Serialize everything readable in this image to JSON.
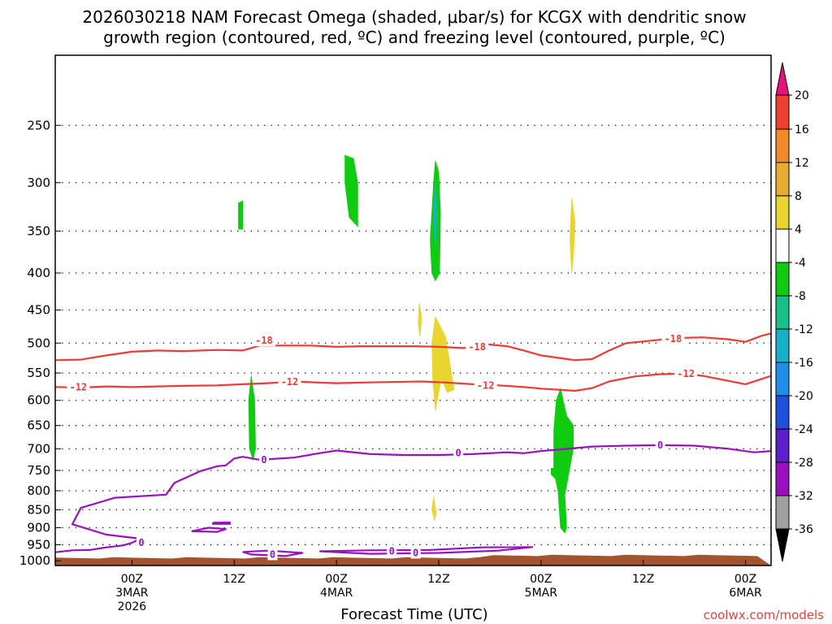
{
  "chart_data": {
    "type": "time-height-contour",
    "title_line1": "2026030218 NAM Forecast Omega (shaded, μbar/s) for KCGX with dendritic snow",
    "title_line2": "growth region (contoured, red, ºC) and freezing level (contoured, purple, ºC)",
    "xlabel": "Forecast Time (UTC)",
    "credit": "coolwx.com/models",
    "x_range_hours": [
      -9,
      75
    ],
    "y_range_hpa": [
      200,
      1015
    ],
    "y_ticks": [
      250,
      300,
      350,
      400,
      450,
      500,
      550,
      600,
      650,
      700,
      750,
      800,
      850,
      900,
      950,
      1000
    ],
    "x_ticks": [
      {
        "hour": 0,
        "l1": "00Z",
        "l2": "3MAR",
        "l3": "2026"
      },
      {
        "hour": 12,
        "l1": "12Z",
        "l2": "",
        "l3": ""
      },
      {
        "hour": 24,
        "l1": "00Z",
        "l2": "4MAR",
        "l3": ""
      },
      {
        "hour": 36,
        "l1": "12Z",
        "l2": "",
        "l3": ""
      },
      {
        "hour": 48,
        "l1": "00Z",
        "l2": "5MAR",
        "l3": ""
      },
      {
        "hour": 60,
        "l1": "12Z",
        "l2": "",
        "l3": ""
      },
      {
        "hour": 72,
        "l1": "00Z",
        "l2": "6MAR",
        "l3": ""
      }
    ],
    "colorbar": {
      "labels": [
        "20",
        "16",
        "12",
        "8",
        "4",
        "-4",
        "-8",
        "-12",
        "-16",
        "-20",
        "-24",
        "-28",
        "-32",
        "-36"
      ],
      "colors": [
        "#e8107a",
        "#ee4030",
        "#f28a2a",
        "#e6ad30",
        "#e8d530",
        "#ffffff",
        "#10cc10",
        "#18c08a",
        "#18b0c8",
        "#1e8ee8",
        "#1e50dc",
        "#5e1ecc",
        "#9a10c0",
        "#a0a0a0",
        "#000000"
      ]
    },
    "contour_labels": {
      "dgz_upper": "-18",
      "dgz_lower": "-12",
      "freezing": "0"
    },
    "series": [
      {
        "name": "-18C isotherm",
        "color": "#ee3a36",
        "points": [
          [
            -9,
            528
          ],
          [
            -6,
            527
          ],
          [
            -3,
            520
          ],
          [
            0,
            514
          ],
          [
            3,
            512
          ],
          [
            6,
            513
          ],
          [
            10,
            511
          ],
          [
            13,
            512
          ],
          [
            15,
            504
          ],
          [
            18,
            504
          ],
          [
            21,
            504
          ],
          [
            24,
            506
          ],
          [
            27,
            505
          ],
          [
            30,
            505
          ],
          [
            33,
            505
          ],
          [
            36,
            506
          ],
          [
            39,
            508
          ],
          [
            41,
            501
          ],
          [
            44,
            505
          ],
          [
            46,
            512
          ],
          [
            48,
            520
          ],
          [
            50,
            524
          ],
          [
            52,
            528
          ],
          [
            54,
            526
          ],
          [
            56,
            512
          ],
          [
            58,
            500
          ],
          [
            61,
            496
          ],
          [
            64,
            492
          ],
          [
            67,
            491
          ],
          [
            70,
            494
          ],
          [
            72,
            498
          ],
          [
            74,
            488
          ],
          [
            75,
            485
          ]
        ]
      },
      {
        "name": "-12C isotherm",
        "color": "#ee3a36",
        "points": [
          [
            -9,
            575
          ],
          [
            -6,
            576
          ],
          [
            -3,
            574
          ],
          [
            0,
            575
          ],
          [
            3,
            574
          ],
          [
            6,
            573
          ],
          [
            10,
            572
          ],
          [
            13,
            570
          ],
          [
            16,
            568
          ],
          [
            19,
            565
          ],
          [
            22,
            567
          ],
          [
            24,
            568
          ],
          [
            27,
            567
          ],
          [
            30,
            566
          ],
          [
            34,
            565
          ],
          [
            37,
            567
          ],
          [
            40,
            570
          ],
          [
            43,
            572
          ],
          [
            46,
            575
          ],
          [
            48,
            578
          ],
          [
            50,
            580
          ],
          [
            52,
            582
          ],
          [
            54,
            577
          ],
          [
            56,
            565
          ],
          [
            59,
            556
          ],
          [
            62,
            552
          ],
          [
            65,
            551
          ],
          [
            67,
            555
          ],
          [
            70,
            564
          ],
          [
            72,
            570
          ],
          [
            74,
            560
          ],
          [
            75,
            555
          ]
        ]
      },
      {
        "name": "0C freezing level",
        "color": "#9a10c0",
        "points": [
          [
            -9,
            973
          ],
          [
            -7,
            967
          ],
          [
            -5,
            966
          ],
          [
            -3,
            958
          ],
          [
            -1,
            952
          ],
          [
            0,
            944
          ],
          [
            1,
            932
          ],
          [
            -3,
            920
          ],
          [
            -7,
            890
          ],
          [
            -6,
            845
          ],
          [
            -2,
            818
          ],
          [
            4,
            810
          ],
          [
            5,
            780
          ],
          [
            8,
            752
          ],
          [
            10,
            740
          ],
          [
            11,
            738
          ],
          [
            12,
            722
          ],
          [
            13,
            718
          ],
          [
            15,
            725
          ],
          [
            19,
            720
          ],
          [
            22,
            710
          ],
          [
            24,
            704
          ],
          [
            28,
            712
          ],
          [
            32,
            714
          ],
          [
            36,
            714
          ],
          [
            40,
            712
          ],
          [
            44,
            708
          ],
          [
            46,
            710
          ],
          [
            48,
            705
          ],
          [
            50,
            702
          ],
          [
            54,
            695
          ],
          [
            58,
            693
          ],
          [
            62,
            692
          ],
          [
            66,
            693
          ],
          [
            70,
            700
          ],
          [
            73,
            708
          ],
          [
            75,
            705
          ]
        ]
      },
      {
        "name": "0C island A",
        "color": "#9a10c0",
        "points": [
          [
            7,
            910
          ],
          [
            9,
            900
          ],
          [
            11,
            904
          ],
          [
            10,
            912
          ],
          [
            7,
            910
          ]
        ]
      },
      {
        "name": "0C island B",
        "color": "#9a10c0",
        "points": [
          [
            9.5,
            886
          ],
          [
            11.5,
            885
          ],
          [
            11.5,
            889
          ],
          [
            9.5,
            889
          ],
          [
            9.5,
            886
          ]
        ]
      },
      {
        "name": "0C island C",
        "color": "#9a10c0",
        "points": [
          [
            13,
            972
          ],
          [
            16,
            968
          ],
          [
            20,
            975
          ],
          [
            18,
            985
          ],
          [
            14,
            980
          ],
          [
            13,
            972
          ]
        ]
      },
      {
        "name": "0C island D",
        "color": "#9a10c0",
        "points": [
          [
            22,
            970
          ],
          [
            28,
            967
          ],
          [
            35,
            966
          ],
          [
            41,
            958
          ],
          [
            47,
            957
          ],
          [
            43,
            968
          ],
          [
            36,
            975
          ],
          [
            28,
            978
          ],
          [
            22,
            970
          ]
        ]
      }
    ],
    "shaded_regions": [
      {
        "color": "#10cc10",
        "level": "-4 to -8",
        "points": [
          [
            12.5,
            320
          ],
          [
            13,
            318
          ],
          [
            13,
            348
          ],
          [
            12.5,
            348
          ],
          [
            12.5,
            320
          ]
        ]
      },
      {
        "color": "#10cc10",
        "level": "-4 to -8",
        "points": [
          [
            25,
            275
          ],
          [
            26,
            278
          ],
          [
            26.5,
            300
          ],
          [
            26.5,
            345
          ],
          [
            25.5,
            335
          ],
          [
            25,
            300
          ],
          [
            25,
            275
          ]
        ]
      },
      {
        "color": "#10cc10",
        "level": "-4 to -8",
        "points": [
          [
            35.6,
            280
          ],
          [
            36,
            290
          ],
          [
            36.2,
            330
          ],
          [
            36.1,
            400
          ],
          [
            35.6,
            410
          ],
          [
            35.2,
            400
          ],
          [
            35,
            360
          ],
          [
            35.4,
            300
          ],
          [
            35.6,
            280
          ]
        ]
      },
      {
        "color": "#18b0c8",
        "level": "-12 to -16",
        "points": [
          [
            35.6,
            300
          ],
          [
            35.8,
            330
          ],
          [
            35.6,
            370
          ],
          [
            35.4,
            330
          ],
          [
            35.6,
            300
          ]
        ]
      },
      {
        "color": "#e8d530",
        "level": "4 to 8",
        "points": [
          [
            51.6,
            315
          ],
          [
            52,
            340
          ],
          [
            51.8,
            380
          ],
          [
            51.6,
            400
          ],
          [
            51.4,
            360
          ],
          [
            51.6,
            315
          ]
        ]
      },
      {
        "color": "#e8d530",
        "level": "4 to 8",
        "points": [
          [
            33.7,
            440
          ],
          [
            34,
            460
          ],
          [
            33.8,
            490
          ],
          [
            33.6,
            470
          ],
          [
            33.7,
            440
          ]
        ]
      },
      {
        "color": "#e8d530",
        "level": "4 to 8",
        "points": [
          [
            35.6,
            460
          ],
          [
            36.8,
            490
          ],
          [
            37.6,
            560
          ],
          [
            37.8,
            580
          ],
          [
            37,
            585
          ],
          [
            36.3,
            560
          ],
          [
            35.6,
            620
          ],
          [
            35.3,
            560
          ],
          [
            35.2,
            500
          ],
          [
            35.6,
            460
          ]
        ]
      },
      {
        "color": "#e8d530",
        "level": "4 to 8",
        "points": [
          [
            35.4,
            815
          ],
          [
            35.7,
            860
          ],
          [
            35.5,
            880
          ],
          [
            35.2,
            850
          ],
          [
            35.4,
            815
          ]
        ]
      },
      {
        "color": "#10cc10",
        "level": "-4 to -8",
        "points": [
          [
            14,
            555
          ],
          [
            14.4,
            600
          ],
          [
            14.5,
            700
          ],
          [
            14.2,
            725
          ],
          [
            13.8,
            700
          ],
          [
            13.7,
            600
          ],
          [
            14,
            555
          ]
        ]
      },
      {
        "color": "#10cc10",
        "level": "-4 to -8",
        "points": [
          [
            50.3,
            578
          ],
          [
            51,
            630
          ],
          [
            51.8,
            650
          ],
          [
            51.8,
            700
          ],
          [
            50.8,
            810
          ],
          [
            51,
            900
          ],
          [
            50.8,
            915
          ],
          [
            50.3,
            900
          ],
          [
            50,
            800
          ],
          [
            49.7,
            770
          ],
          [
            49.2,
            760
          ],
          [
            49.2,
            745
          ],
          [
            49.5,
            745
          ],
          [
            49.5,
            660
          ],
          [
            49.8,
            600
          ],
          [
            50.3,
            578
          ]
        ]
      }
    ],
    "terrain": {
      "color": "#a2542e",
      "top_hpa": 988,
      "bottom_hpa": 1015
    }
  }
}
